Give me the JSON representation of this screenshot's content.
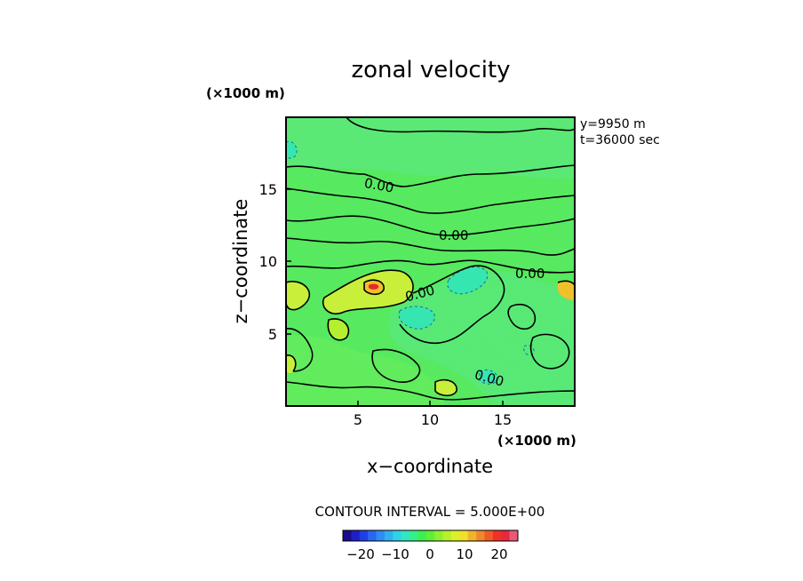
{
  "chart_data": {
    "type": "heatmap",
    "title": "zonal velocity",
    "xlabel": "x−coordinate",
    "ylabel": "z−coordinate",
    "x_unit": "(×1000 m)",
    "y_unit": "(×1000 m)",
    "xlim": [
      0,
      20
    ],
    "ylim": [
      0,
      20
    ],
    "x_ticks": [
      "5",
      "10",
      "15"
    ],
    "y_ticks": [
      "5",
      "10",
      "15"
    ],
    "x_tick_values": [
      5,
      10,
      15
    ],
    "y_tick_values": [
      5,
      10,
      15
    ],
    "info_lines": [
      "y=9950  m",
      "t=36000  sec"
    ],
    "contour_interval_label": "CONTOUR INTERVAL = 5.000E+00",
    "contour_labels": [
      "0.00",
      "0.00",
      "0.00",
      "0.00",
      "0.00"
    ],
    "colorbar": {
      "min": -25,
      "max": 25,
      "tick_labels": [
        "−20",
        "−10",
        "0",
        "10",
        "20"
      ],
      "tick_values": [
        -20,
        -10,
        0,
        10,
        20
      ],
      "colors": [
        "#1a0a8c",
        "#1f1fc7",
        "#1e40e6",
        "#2a66f0",
        "#2f8cf2",
        "#2fb0f0",
        "#2fd2e8",
        "#30e6c4",
        "#33f08c",
        "#3df050",
        "#5ef036",
        "#8cf030",
        "#b8f02a",
        "#dcf02a",
        "#f0e02a",
        "#f0b42a",
        "#f0872a",
        "#f05a28",
        "#ee3228",
        "#e8283c",
        "#e85a78"
      ]
    },
    "field_note": "mostly near-zero (green) field with weak positive (yellow) patches and weak negative (cyan dashed) patches"
  }
}
